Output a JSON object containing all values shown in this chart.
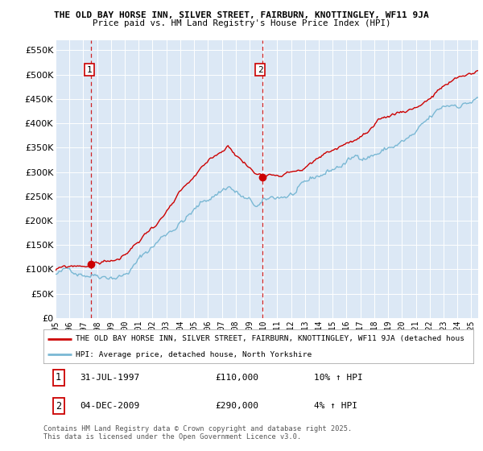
{
  "title1": "THE OLD BAY HORSE INN, SILVER STREET, FAIRBURN, KNOTTINGLEY, WF11 9JA",
  "title2": "Price paid vs. HM Land Registry's House Price Index (HPI)",
  "plot_bg": "#dce8f5",
  "red_line_color": "#cc0000",
  "blue_line_color": "#7ab8d4",
  "vline_color": "#cc0000",
  "ylim": [
    0,
    570000
  ],
  "yticks": [
    0,
    50000,
    100000,
    150000,
    200000,
    250000,
    300000,
    350000,
    400000,
    450000,
    500000,
    550000
  ],
  "ytick_labels": [
    "£0",
    "£50K",
    "£100K",
    "£150K",
    "£200K",
    "£250K",
    "£300K",
    "£350K",
    "£400K",
    "£450K",
    "£500K",
    "£550K"
  ],
  "xmin": 1995.0,
  "xmax": 2025.5,
  "xticks": [
    1995,
    1996,
    1997,
    1998,
    1999,
    2000,
    2001,
    2002,
    2003,
    2004,
    2005,
    2006,
    2007,
    2008,
    2009,
    2010,
    2011,
    2012,
    2013,
    2014,
    2015,
    2016,
    2017,
    2018,
    2019,
    2020,
    2021,
    2022,
    2023,
    2024,
    2025
  ],
  "sale1_x": 1997.58,
  "sale1_y": 110000,
  "sale2_x": 2009.92,
  "sale2_y": 290000,
  "legend_line1": "THE OLD BAY HORSE INN, SILVER STREET, FAIRBURN, KNOTTINGLEY, WF11 9JA (detached hous",
  "legend_line2": "HPI: Average price, detached house, North Yorkshire",
  "footer": "Contains HM Land Registry data © Crown copyright and database right 2025.\nThis data is licensed under the Open Government Licence v3.0."
}
